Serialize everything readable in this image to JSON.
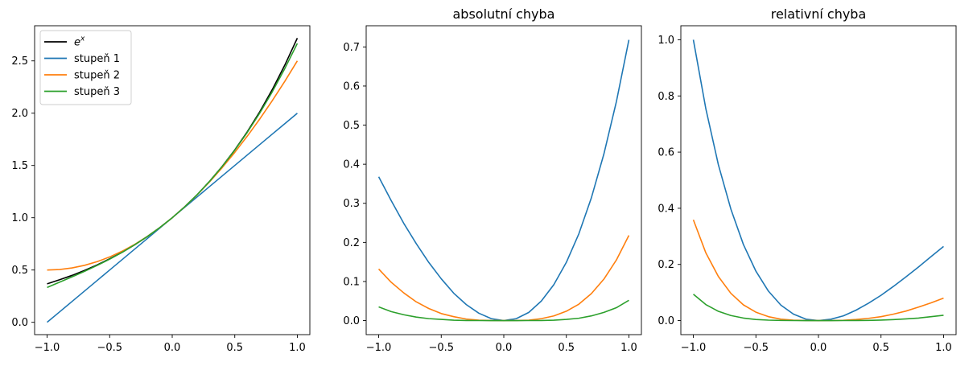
{
  "chart_data": [
    {
      "type": "line",
      "title": "",
      "xlabel": "",
      "ylabel": "",
      "xlim": [
        -1.1,
        1.1
      ],
      "ylim": [
        -0.1179,
        2.8362
      ],
      "xticks": [
        -1.0,
        -0.5,
        0.0,
        0.5,
        1.0
      ],
      "xtick_labels": [
        "−1.0",
        "−0.5",
        "0.0",
        "0.5",
        "1.0"
      ],
      "yticks": [
        0.0,
        0.5,
        1.0,
        1.5,
        2.0,
        2.5
      ],
      "ytick_labels": [
        "0.0",
        "0.5",
        "1.0",
        "1.5",
        "2.0",
        "2.5"
      ],
      "legend": "upper-left",
      "x": [
        -1.0,
        -0.9,
        -0.8,
        -0.7,
        -0.6,
        -0.5,
        -0.4,
        -0.3,
        -0.2,
        -0.1,
        0.0,
        0.1,
        0.2,
        0.3,
        0.4,
        0.5,
        0.6,
        0.7,
        0.8,
        0.9,
        1.0
      ],
      "series": [
        {
          "name": "e",
          "name_superscript": "x",
          "color": "#000000",
          "values": [
            0.368,
            0.407,
            0.449,
            0.497,
            0.549,
            0.607,
            0.67,
            0.741,
            0.819,
            0.905,
            1.0,
            1.105,
            1.221,
            1.35,
            1.492,
            1.649,
            1.822,
            2.014,
            2.226,
            2.46,
            2.718
          ]
        },
        {
          "name": "stupeň 1",
          "color": "#1f77b4",
          "values": [
            0.0,
            0.1,
            0.2,
            0.3,
            0.4,
            0.5,
            0.6,
            0.7,
            0.8,
            0.9,
            1.0,
            1.1,
            1.2,
            1.3,
            1.4,
            1.5,
            1.6,
            1.7,
            1.8,
            1.9,
            2.0
          ]
        },
        {
          "name": "stupeň 2",
          "color": "#ff7f0e",
          "values": [
            0.5,
            0.505,
            0.52,
            0.545,
            0.58,
            0.625,
            0.68,
            0.745,
            0.82,
            0.905,
            1.0,
            1.105,
            1.22,
            1.345,
            1.48,
            1.625,
            1.78,
            1.945,
            2.12,
            2.305,
            2.5
          ]
        },
        {
          "name": "stupeň 3",
          "color": "#2ca02c",
          "values": [
            0.333,
            0.384,
            0.435,
            0.488,
            0.544,
            0.604,
            0.669,
            0.741,
            0.819,
            0.905,
            1.0,
            1.105,
            1.221,
            1.35,
            1.491,
            1.646,
            1.816,
            2.002,
            2.205,
            2.427,
            2.667
          ]
        }
      ]
    },
    {
      "type": "line",
      "title": "absolutní chyba",
      "xlabel": "",
      "ylabel": "",
      "xlim": [
        -1.1,
        1.1
      ],
      "ylim": [
        -0.0359,
        0.7542
      ],
      "xticks": [
        -1.0,
        -0.5,
        0.0,
        0.5,
        1.0
      ],
      "xtick_labels": [
        "−1.0",
        "−0.5",
        "0.0",
        "0.5",
        "1.0"
      ],
      "yticks": [
        0.0,
        0.1,
        0.2,
        0.3,
        0.4,
        0.5,
        0.6,
        0.7
      ],
      "ytick_labels": [
        "0.0",
        "0.1",
        "0.2",
        "0.3",
        "0.4",
        "0.5",
        "0.6",
        "0.7"
      ],
      "x": [
        -1.0,
        -0.9,
        -0.8,
        -0.7,
        -0.6,
        -0.5,
        -0.4,
        -0.3,
        -0.2,
        -0.1,
        0.0,
        0.1,
        0.2,
        0.3,
        0.4,
        0.5,
        0.6,
        0.7,
        0.8,
        0.9,
        1.0
      ],
      "series": [
        {
          "color": "#1f77b4",
          "values": [
            0.368,
            0.307,
            0.249,
            0.197,
            0.149,
            0.107,
            0.07,
            0.041,
            0.019,
            0.005,
            0.0,
            0.005,
            0.021,
            0.05,
            0.092,
            0.149,
            0.222,
            0.314,
            0.426,
            0.56,
            0.718
          ]
        },
        {
          "color": "#ff7f0e",
          "values": [
            0.132,
            0.098,
            0.071,
            0.048,
            0.031,
            0.018,
            0.01,
            0.004,
            0.001,
            0.0002,
            0.0,
            0.0002,
            0.001,
            0.005,
            0.012,
            0.024,
            0.042,
            0.069,
            0.106,
            0.155,
            0.218
          ]
        },
        {
          "color": "#2ca02c",
          "values": [
            0.035,
            0.023,
            0.015,
            0.009,
            0.005,
            0.003,
            0.001,
            0.0003,
            0.0001,
            0.0,
            0.0,
            0.0,
            0.0001,
            0.0003,
            0.001,
            0.003,
            0.006,
            0.012,
            0.021,
            0.033,
            0.052
          ]
        }
      ]
    },
    {
      "type": "line",
      "title": "relativní chyba",
      "xlabel": "",
      "ylabel": "",
      "xlim": [
        -1.1,
        1.1
      ],
      "ylim": [
        -0.05,
        1.05
      ],
      "xticks": [
        -1.0,
        -0.5,
        0.0,
        0.5,
        1.0
      ],
      "xtick_labels": [
        "−1.0",
        "−0.5",
        "0.0",
        "0.5",
        "1.0"
      ],
      "yticks": [
        0.0,
        0.2,
        0.4,
        0.6,
        0.8,
        1.0
      ],
      "ytick_labels": [
        "0.0",
        "0.2",
        "0.4",
        "0.6",
        "0.8",
        "1.0"
      ],
      "x": [
        -1.0,
        -0.9,
        -0.8,
        -0.7,
        -0.6,
        -0.5,
        -0.4,
        -0.3,
        -0.2,
        -0.1,
        0.0,
        0.1,
        0.2,
        0.3,
        0.4,
        0.5,
        0.6,
        0.7,
        0.8,
        0.9,
        1.0
      ],
      "series": [
        {
          "color": "#1f77b4",
          "values": [
            1.0,
            0.754,
            0.555,
            0.397,
            0.271,
            0.176,
            0.105,
            0.055,
            0.023,
            0.005,
            0.0,
            0.005,
            0.017,
            0.037,
            0.062,
            0.09,
            0.122,
            0.156,
            0.191,
            0.228,
            0.264
          ]
        },
        {
          "color": "#ff7f0e",
          "values": [
            0.359,
            0.241,
            0.157,
            0.097,
            0.056,
            0.03,
            0.014,
            0.005,
            0.0013,
            0.0002,
            0.0,
            0.0001,
            0.001,
            0.004,
            0.008,
            0.014,
            0.023,
            0.034,
            0.048,
            0.063,
            0.08
          ]
        },
        {
          "color": "#2ca02c",
          "values": [
            0.094,
            0.057,
            0.033,
            0.018,
            0.009,
            0.004,
            0.0016,
            0.0005,
            0.0001,
            0.0,
            0.0,
            0.0,
            0.0001,
            0.0002,
            0.0006,
            0.0018,
            0.0036,
            0.006,
            0.009,
            0.014,
            0.019
          ]
        }
      ]
    }
  ]
}
